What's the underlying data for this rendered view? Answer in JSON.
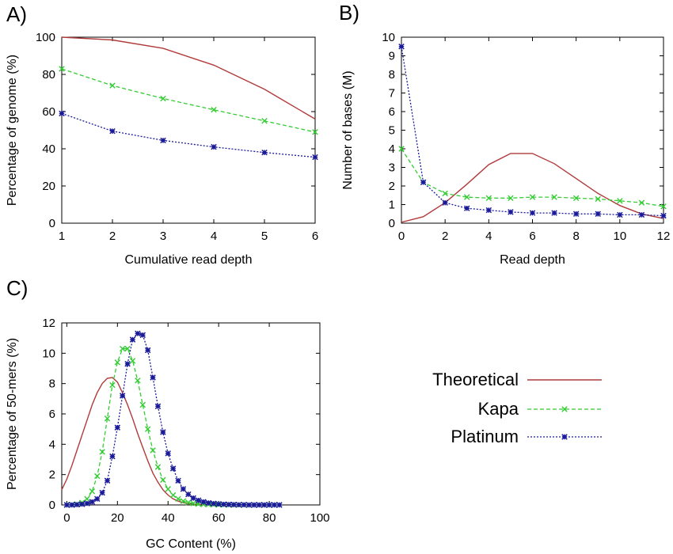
{
  "colors": {
    "theoretical": "#b03a3a",
    "kapa": "#33cc33",
    "platinum": "#1a1a99",
    "axis": "#000000"
  },
  "legend": {
    "entries": [
      "Theoretical",
      "Kapa",
      "Platinum"
    ]
  },
  "chart_data": [
    {
      "panel": "A)",
      "type": "line",
      "xlabel": "Cumulative read depth",
      "ylabel": "Percentage of genome (%)",
      "xlim": [
        1,
        6
      ],
      "ylim": [
        0,
        100
      ],
      "xticks": [
        1,
        2,
        3,
        4,
        5,
        6
      ],
      "yticks": [
        0,
        20,
        40,
        60,
        80,
        100
      ],
      "grid": false,
      "series": [
        {
          "name": "Theoretical",
          "x": [
            1,
            2,
            3,
            4,
            5,
            6
          ],
          "y": [
            100,
            98.5,
            94,
            85,
            72,
            56
          ]
        },
        {
          "name": "Kapa",
          "x": [
            1,
            2,
            3,
            4,
            5,
            6
          ],
          "y": [
            83,
            74,
            67,
            61,
            55,
            49
          ]
        },
        {
          "name": "Platinum",
          "x": [
            1,
            2,
            3,
            4,
            5,
            6
          ],
          "y": [
            59,
            49.5,
            44.5,
            41,
            38,
            35.5
          ]
        }
      ]
    },
    {
      "panel": "B)",
      "type": "line",
      "xlabel": "Read depth",
      "ylabel": "Number of bases (M)",
      "xlim": [
        0,
        12
      ],
      "ylim": [
        0,
        10
      ],
      "xticks": [
        0,
        2,
        4,
        6,
        8,
        10,
        12
      ],
      "yticks": [
        0,
        1,
        2,
        3,
        4,
        5,
        6,
        7,
        8,
        9,
        10
      ],
      "grid": false,
      "series": [
        {
          "name": "Theoretical",
          "x": [
            0,
            1,
            2,
            3,
            4,
            5,
            6,
            7,
            8,
            9,
            10,
            11,
            12
          ],
          "y": [
            0.05,
            0.35,
            1.1,
            2.1,
            3.15,
            3.75,
            3.75,
            3.2,
            2.4,
            1.6,
            0.95,
            0.5,
            0.25
          ]
        },
        {
          "name": "Kapa",
          "x": [
            0,
            1,
            2,
            3,
            4,
            5,
            6,
            7,
            8,
            9,
            10,
            11,
            12
          ],
          "y": [
            4.0,
            2.2,
            1.6,
            1.4,
            1.35,
            1.35,
            1.4,
            1.4,
            1.35,
            1.3,
            1.2,
            1.1,
            0.9
          ]
        },
        {
          "name": "Platinum",
          "x": [
            0,
            1,
            2,
            3,
            4,
            5,
            6,
            7,
            8,
            9,
            10,
            11,
            12
          ],
          "y": [
            9.5,
            2.2,
            1.1,
            0.8,
            0.7,
            0.6,
            0.55,
            0.55,
            0.5,
            0.5,
            0.45,
            0.45,
            0.4
          ]
        }
      ]
    },
    {
      "panel": "C)",
      "type": "line",
      "xlabel": "GC Content (%)",
      "ylabel": "Percentage of 50-mers (%)",
      "xlim": [
        -2,
        100
      ],
      "ylim": [
        0,
        12
      ],
      "xticks": [
        0,
        20,
        40,
        60,
        80,
        100
      ],
      "yticks": [
        0,
        2,
        4,
        6,
        8,
        10,
        12
      ],
      "grid": false,
      "series": [
        {
          "name": "Theoretical",
          "x": [
            -2,
            0,
            2,
            4,
            6,
            8,
            10,
            12,
            14,
            16,
            18,
            20,
            22,
            24,
            26,
            28,
            30,
            32,
            34,
            36,
            38,
            40,
            42,
            44,
            46,
            48,
            50,
            55,
            60,
            70,
            80
          ],
          "y": [
            1.0,
            1.7,
            2.6,
            3.6,
            4.6,
            5.6,
            6.6,
            7.4,
            8.0,
            8.35,
            8.4,
            8.1,
            7.4,
            6.6,
            5.7,
            4.7,
            3.8,
            2.9,
            2.1,
            1.5,
            1.0,
            0.65,
            0.4,
            0.25,
            0.15,
            0.08,
            0.05,
            0.02,
            0.01,
            0.0,
            0.0
          ]
        },
        {
          "name": "Kapa",
          "x": [
            0,
            2,
            4,
            6,
            8,
            10,
            12,
            14,
            16,
            18,
            20,
            22,
            24,
            26,
            28,
            30,
            32,
            34,
            36,
            38,
            40,
            42,
            44,
            46,
            48,
            50,
            52,
            54,
            56,
            58,
            60,
            62,
            64,
            66,
            68,
            70,
            72,
            74,
            76,
            78,
            80,
            82,
            84
          ],
          "y": [
            0.0,
            0.02,
            0.05,
            0.15,
            0.4,
            0.9,
            1.9,
            3.5,
            5.7,
            7.9,
            9.4,
            10.3,
            10.3,
            9.5,
            8.2,
            6.6,
            5.0,
            3.6,
            2.5,
            1.65,
            1.05,
            0.65,
            0.4,
            0.25,
            0.16,
            0.1,
            0.06,
            0.04,
            0.03,
            0.02,
            0.01,
            0.01,
            0.0,
            0.0,
            0.0,
            0.0,
            0.0,
            0.0,
            0.0,
            0.0,
            0.0,
            0.0,
            0.0
          ]
        },
        {
          "name": "Platinum",
          "x": [
            0,
            2,
            4,
            6,
            8,
            10,
            12,
            14,
            16,
            18,
            20,
            22,
            24,
            26,
            28,
            30,
            32,
            34,
            36,
            38,
            40,
            42,
            44,
            46,
            48,
            50,
            52,
            54,
            56,
            58,
            60,
            62,
            64,
            66,
            68,
            70,
            72,
            74,
            76,
            78,
            80,
            82,
            84
          ],
          "y": [
            0.0,
            0.0,
            0.02,
            0.05,
            0.1,
            0.2,
            0.4,
            0.8,
            1.6,
            3.2,
            5.1,
            7.2,
            9.3,
            10.9,
            11.3,
            11.2,
            10.2,
            8.4,
            6.5,
            4.8,
            3.4,
            2.4,
            1.6,
            1.05,
            0.7,
            0.45,
            0.3,
            0.2,
            0.13,
            0.09,
            0.06,
            0.04,
            0.03,
            0.02,
            0.01,
            0.01,
            0.0,
            0.0,
            0.0,
            0.0,
            0.0,
            0.0,
            0.0
          ]
        }
      ]
    }
  ]
}
